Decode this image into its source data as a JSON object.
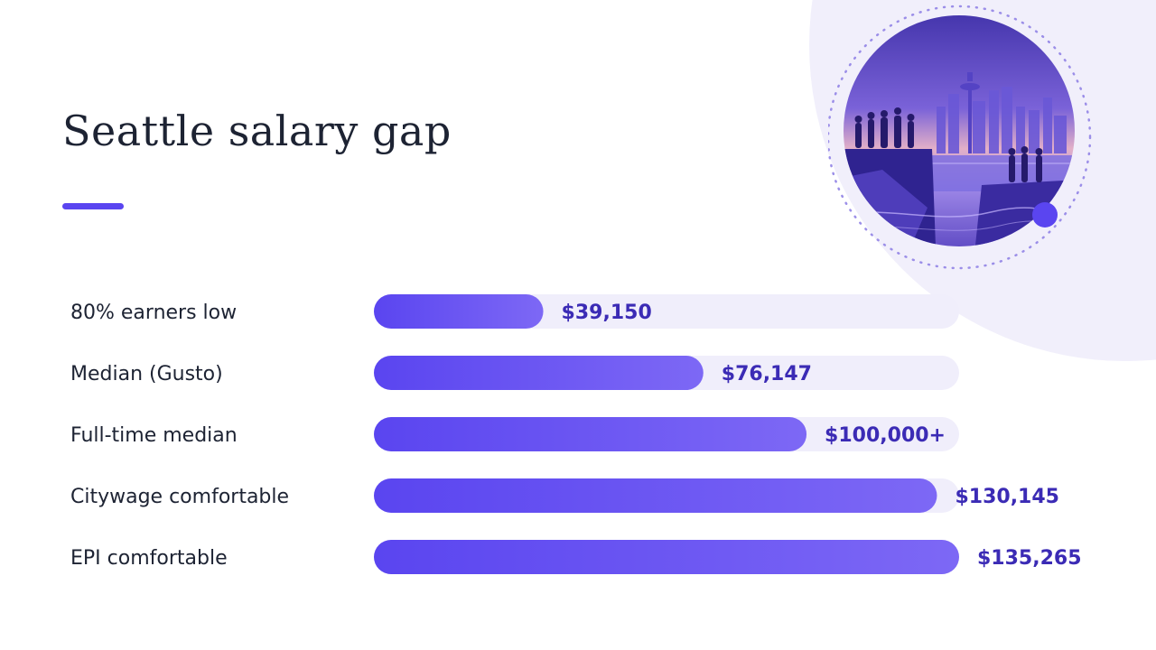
{
  "slide": {
    "title": "Seattle salary gap"
  },
  "colors": {
    "accent": "#5a45f0",
    "bar_start": "#5a45f0",
    "bar_end": "#7d68f5",
    "track": "#f0eefb",
    "value_text": "#3b2bb5",
    "title_text": "#1d2333"
  },
  "chart_data": {
    "type": "bar",
    "orientation": "horizontal",
    "categories": [
      "80% earners low",
      "Median (Gusto)",
      "Full-time median",
      "Citywage comfortable",
      "EPI comfortable"
    ],
    "values": [
      39150,
      76147,
      100000,
      130145,
      135265
    ],
    "value_labels": [
      "$39,150",
      "$76,147",
      "$100,000+",
      "$130,145",
      "$135,265"
    ],
    "xlim": [
      0,
      135265
    ],
    "grid": false,
    "legend": "none"
  }
}
